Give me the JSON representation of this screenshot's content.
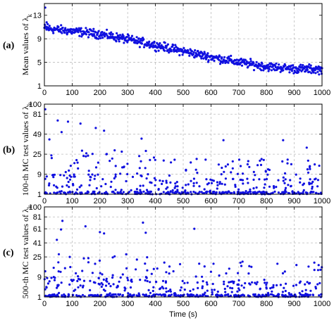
{
  "chart_data": [
    {
      "type": "scatter",
      "panel_label": "(a)",
      "ylabel": "Mean values of λ",
      "ylabel_sub": "k",
      "xlim": [
        0,
        1000
      ],
      "ylim": [
        1,
        15
      ],
      "xticks": [
        0,
        100,
        200,
        300,
        400,
        500,
        600,
        700,
        800,
        900,
        1000
      ],
      "yticks": [
        1,
        5,
        9,
        13
      ],
      "grid": true,
      "trend": {
        "x": [
          0,
          100,
          200,
          300,
          400,
          500,
          600,
          700,
          800,
          900,
          1000
        ],
        "y": [
          10.8,
          10.3,
          9.8,
          8.9,
          7.9,
          6.9,
          5.9,
          5.0,
          4.3,
          3.9,
          3.8
        ]
      },
      "noise": 0.45,
      "count": 650
    },
    {
      "type": "scatter",
      "panel_label": "(b)",
      "ylabel": "100-th MC test values of λ",
      "ylabel_sub": "k",
      "xlim": [
        0,
        1000
      ],
      "ylim": [
        1,
        100
      ],
      "xticks": [
        0,
        100,
        200,
        300,
        400,
        500,
        600,
        700,
        800,
        900,
        1000
      ],
      "yticks": [
        1,
        9,
        25,
        49,
        81,
        100
      ],
      "yticks_label": [
        "1",
        "9",
        "25",
        "49",
        "81",
        "100"
      ],
      "grid": true,
      "outliers": [
        [
          3,
          90
        ],
        [
          18,
          42
        ],
        [
          48,
          70
        ],
        [
          62,
          52
        ],
        [
          85,
          68
        ],
        [
          130,
          65
        ],
        [
          185,
          58
        ],
        [
          215,
          54
        ],
        [
          350,
          43
        ],
        [
          645,
          41
        ],
        [
          860,
          41
        ],
        [
          945,
          32
        ]
      ],
      "count": 520
    },
    {
      "type": "scatter",
      "panel_label": "(c)",
      "ylabel": "500-th MC test values of λ",
      "ylabel_sub": "k",
      "xlabel": "Time (s)",
      "xlim": [
        0,
        1000
      ],
      "ylim": [
        1,
        100
      ],
      "xticks": [
        0,
        100,
        200,
        300,
        400,
        500,
        600,
        700,
        800,
        900,
        1000
      ],
      "yticks": [
        1,
        9,
        25,
        41,
        61,
        81,
        100
      ],
      "grid": true,
      "outliers": [
        [
          65,
          74
        ],
        [
          60,
          60
        ],
        [
          148,
          65
        ],
        [
          200,
          56
        ],
        [
          215,
          54
        ],
        [
          355,
          71
        ],
        [
          365,
          55
        ],
        [
          540,
          61
        ],
        [
          45,
          45
        ]
      ],
      "count": 520
    }
  ],
  "colors": {
    "marker": "#1010e0",
    "grid": "#bdbdbd"
  }
}
